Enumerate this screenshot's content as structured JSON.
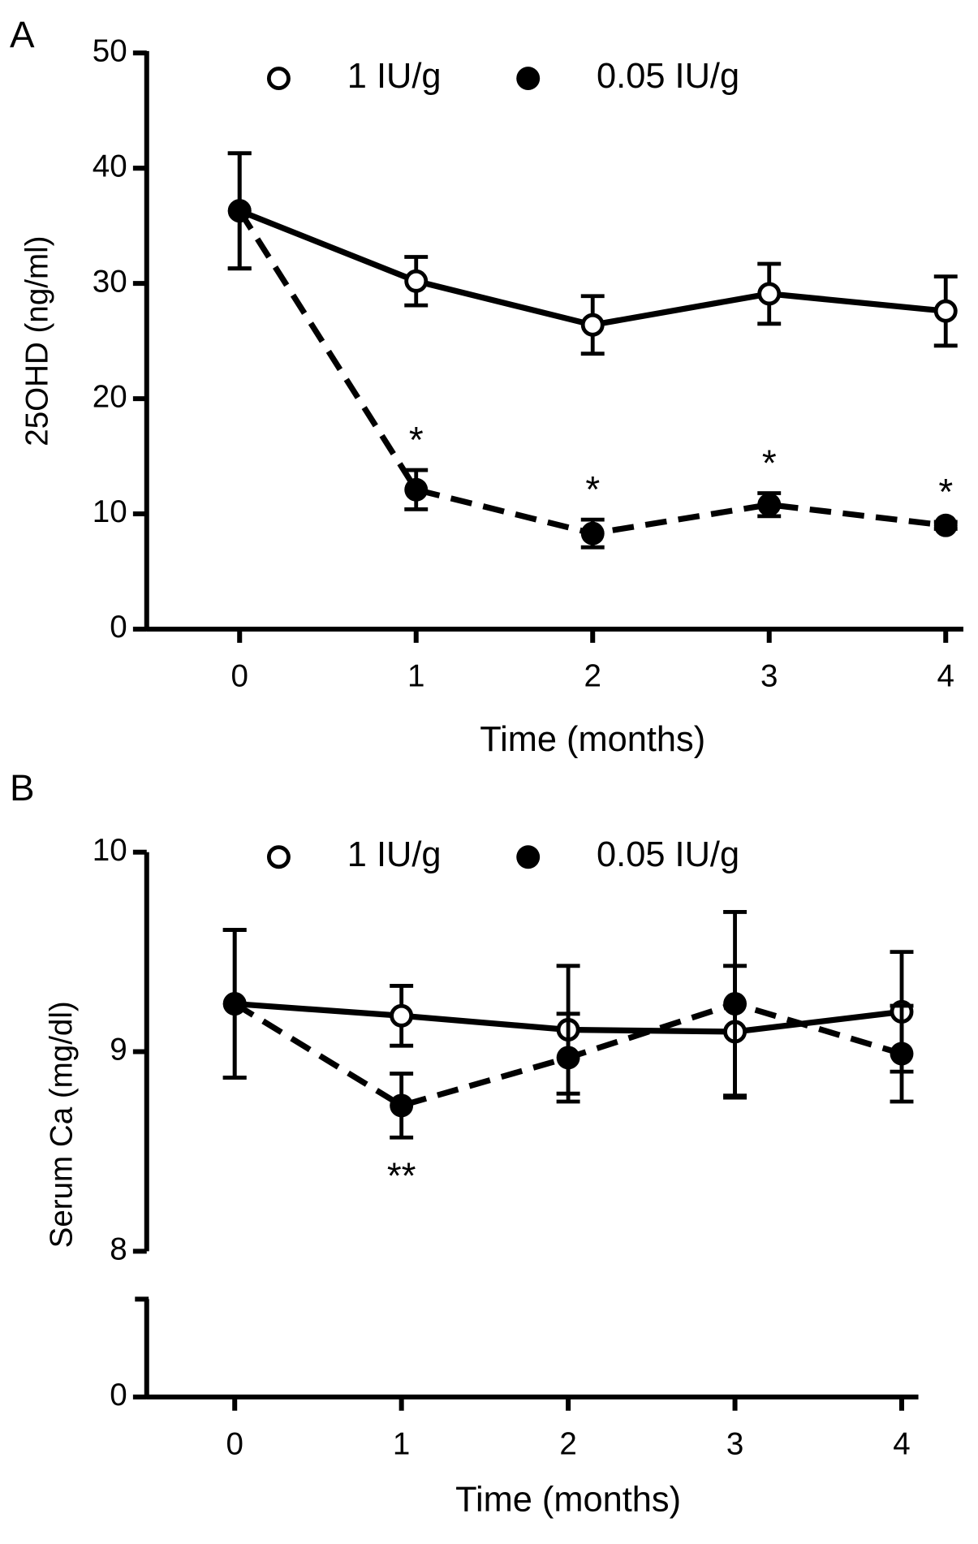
{
  "chart_data": [
    {
      "type": "line",
      "panel_label": "A",
      "xlabel": "Time (months)",
      "ylabel": "25OHD (ng/ml)",
      "x": [
        0,
        1,
        2,
        3,
        4
      ],
      "xlim": [
        -0.5,
        4.1
      ],
      "xticks": [
        0,
        1,
        2,
        3,
        4
      ],
      "ylim": [
        0,
        50
      ],
      "yticks": [
        0,
        10,
        20,
        30,
        40,
        50
      ],
      "legend": "top",
      "series": [
        {
          "name": "1 IU/g",
          "color": "#000000",
          "marker": "open",
          "line_style": "solid",
          "values": [
            36.3,
            30.2,
            26.4,
            29.1,
            27.6
          ],
          "errors": [
            5.0,
            2.1,
            2.5,
            2.6,
            3.0
          ]
        },
        {
          "name": "0.05 IU/g",
          "color": "#000000",
          "marker": "filled",
          "line_style": "dashed",
          "values": [
            36.3,
            12.1,
            8.3,
            10.8,
            9.0
          ],
          "errors": [
            5.0,
            1.7,
            1.2,
            1.0,
            0.3
          ]
        }
      ],
      "annotations": [
        {
          "series": 1,
          "x": 1,
          "text": "*",
          "position": "above"
        },
        {
          "series": 1,
          "x": 2,
          "text": "*",
          "position": "above"
        },
        {
          "series": 1,
          "x": 3,
          "text": "*",
          "position": "above"
        },
        {
          "series": 1,
          "x": 4,
          "text": "*",
          "position": "above"
        }
      ]
    },
    {
      "type": "line",
      "panel_label": "B",
      "xlabel": "Time (months)",
      "ylabel": "Serum Ca (mg/dl)",
      "x": [
        0,
        1,
        2,
        3,
        4
      ],
      "xlim": [
        -0.5,
        4.1
      ],
      "xticks": [
        0,
        1,
        2,
        3,
        4
      ],
      "ylim": [
        0,
        10
      ],
      "y_break": [
        0,
        8
      ],
      "yticks": [
        0,
        8,
        9,
        10
      ],
      "legend": "top",
      "series": [
        {
          "name": "1 IU/g",
          "color": "#000000",
          "marker": "open",
          "line_style": "solid",
          "values": [
            9.24,
            9.18,
            9.11,
            9.1,
            9.2
          ],
          "errors": [
            0.37,
            0.15,
            0.32,
            0.33,
            0.3
          ]
        },
        {
          "name": "0.05 IU/g",
          "color": "#000000",
          "marker": "filled",
          "line_style": "dashed",
          "values": [
            9.24,
            8.73,
            8.97,
            9.24,
            8.99
          ],
          "errors": [
            0.37,
            0.16,
            0.22,
            0.46,
            0.24
          ]
        }
      ],
      "annotations": [
        {
          "series": 1,
          "x": 1,
          "text": "**",
          "position": "below"
        }
      ]
    }
  ]
}
